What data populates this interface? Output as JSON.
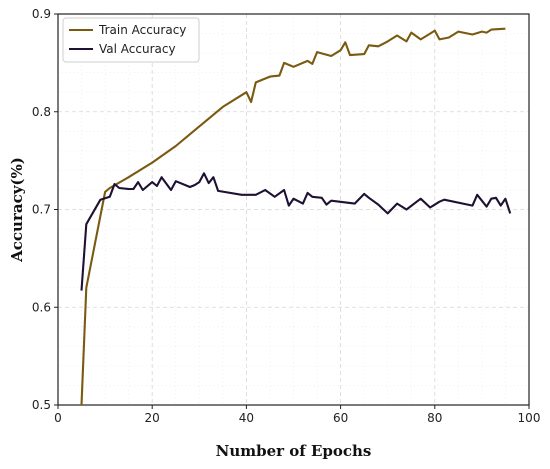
{
  "chart_data": {
    "type": "line",
    "title": "",
    "xlabel": "Number of Epochs",
    "ylabel": "Accuracy(%)",
    "xlim": [
      0,
      100
    ],
    "ylim": [
      0.5,
      0.9
    ],
    "xticks": [
      0,
      20,
      40,
      60,
      80,
      100
    ],
    "yticks": [
      0.5,
      0.6,
      0.7,
      0.8,
      0.9
    ],
    "grid": true,
    "legend_position": "top-left",
    "series": [
      {
        "name": "Train Accuracy",
        "color": "#7a5a10",
        "points": [
          [
            5,
            0.5
          ],
          [
            6,
            0.62
          ],
          [
            10,
            0.718
          ],
          [
            11,
            0.722
          ],
          [
            15,
            0.733
          ],
          [
            20,
            0.748
          ],
          [
            25,
            0.765
          ],
          [
            30,
            0.785
          ],
          [
            35,
            0.805
          ],
          [
            40,
            0.82
          ],
          [
            41,
            0.81
          ],
          [
            42,
            0.83
          ],
          [
            45,
            0.836
          ],
          [
            47,
            0.837
          ],
          [
            48,
            0.85
          ],
          [
            50,
            0.846
          ],
          [
            53,
            0.852
          ],
          [
            54,
            0.849
          ],
          [
            55,
            0.861
          ],
          [
            58,
            0.857
          ],
          [
            60,
            0.863
          ],
          [
            61,
            0.871
          ],
          [
            62,
            0.858
          ],
          [
            65,
            0.859
          ],
          [
            66,
            0.868
          ],
          [
            68,
            0.867
          ],
          [
            70,
            0.872
          ],
          [
            72,
            0.878
          ],
          [
            74,
            0.872
          ],
          [
            75,
            0.881
          ],
          [
            77,
            0.874
          ],
          [
            79,
            0.88
          ],
          [
            80,
            0.883
          ],
          [
            81,
            0.874
          ],
          [
            83,
            0.876
          ],
          [
            85,
            0.882
          ],
          [
            88,
            0.879
          ],
          [
            90,
            0.882
          ],
          [
            91,
            0.881
          ],
          [
            92,
            0.884
          ],
          [
            95,
            0.885
          ]
        ]
      },
      {
        "name": "Val Accuracy",
        "color": "#1e1133",
        "points": [
          [
            5,
            0.617
          ],
          [
            6,
            0.685
          ],
          [
            9,
            0.71
          ],
          [
            11,
            0.713
          ],
          [
            12,
            0.726
          ],
          [
            13,
            0.722
          ],
          [
            15,
            0.721
          ],
          [
            16,
            0.721
          ],
          [
            17,
            0.728
          ],
          [
            18,
            0.72
          ],
          [
            20,
            0.728
          ],
          [
            21,
            0.724
          ],
          [
            22,
            0.733
          ],
          [
            24,
            0.72
          ],
          [
            25,
            0.729
          ],
          [
            28,
            0.723
          ],
          [
            29,
            0.725
          ],
          [
            30,
            0.728
          ],
          [
            31,
            0.737
          ],
          [
            32,
            0.727
          ],
          [
            33,
            0.733
          ],
          [
            34,
            0.719
          ],
          [
            39,
            0.715
          ],
          [
            42,
            0.715
          ],
          [
            44,
            0.72
          ],
          [
            46,
            0.713
          ],
          [
            48,
            0.72
          ],
          [
            49,
            0.704
          ],
          [
            50,
            0.711
          ],
          [
            52,
            0.706
          ],
          [
            53,
            0.717
          ],
          [
            54,
            0.713
          ],
          [
            56,
            0.712
          ],
          [
            57,
            0.705
          ],
          [
            58,
            0.709
          ],
          [
            63,
            0.706
          ],
          [
            65,
            0.716
          ],
          [
            66,
            0.712
          ],
          [
            68,
            0.705
          ],
          [
            70,
            0.696
          ],
          [
            72,
            0.706
          ],
          [
            74,
            0.7
          ],
          [
            77,
            0.711
          ],
          [
            79,
            0.702
          ],
          [
            81,
            0.708
          ],
          [
            82,
            0.71
          ],
          [
            87,
            0.705
          ],
          [
            88,
            0.704
          ],
          [
            89,
            0.715
          ],
          [
            90,
            0.709
          ],
          [
            91,
            0.703
          ],
          [
            92,
            0.711
          ],
          [
            93,
            0.712
          ],
          [
            94,
            0.704
          ],
          [
            95,
            0.711
          ],
          [
            96,
            0.696
          ]
        ]
      }
    ]
  }
}
